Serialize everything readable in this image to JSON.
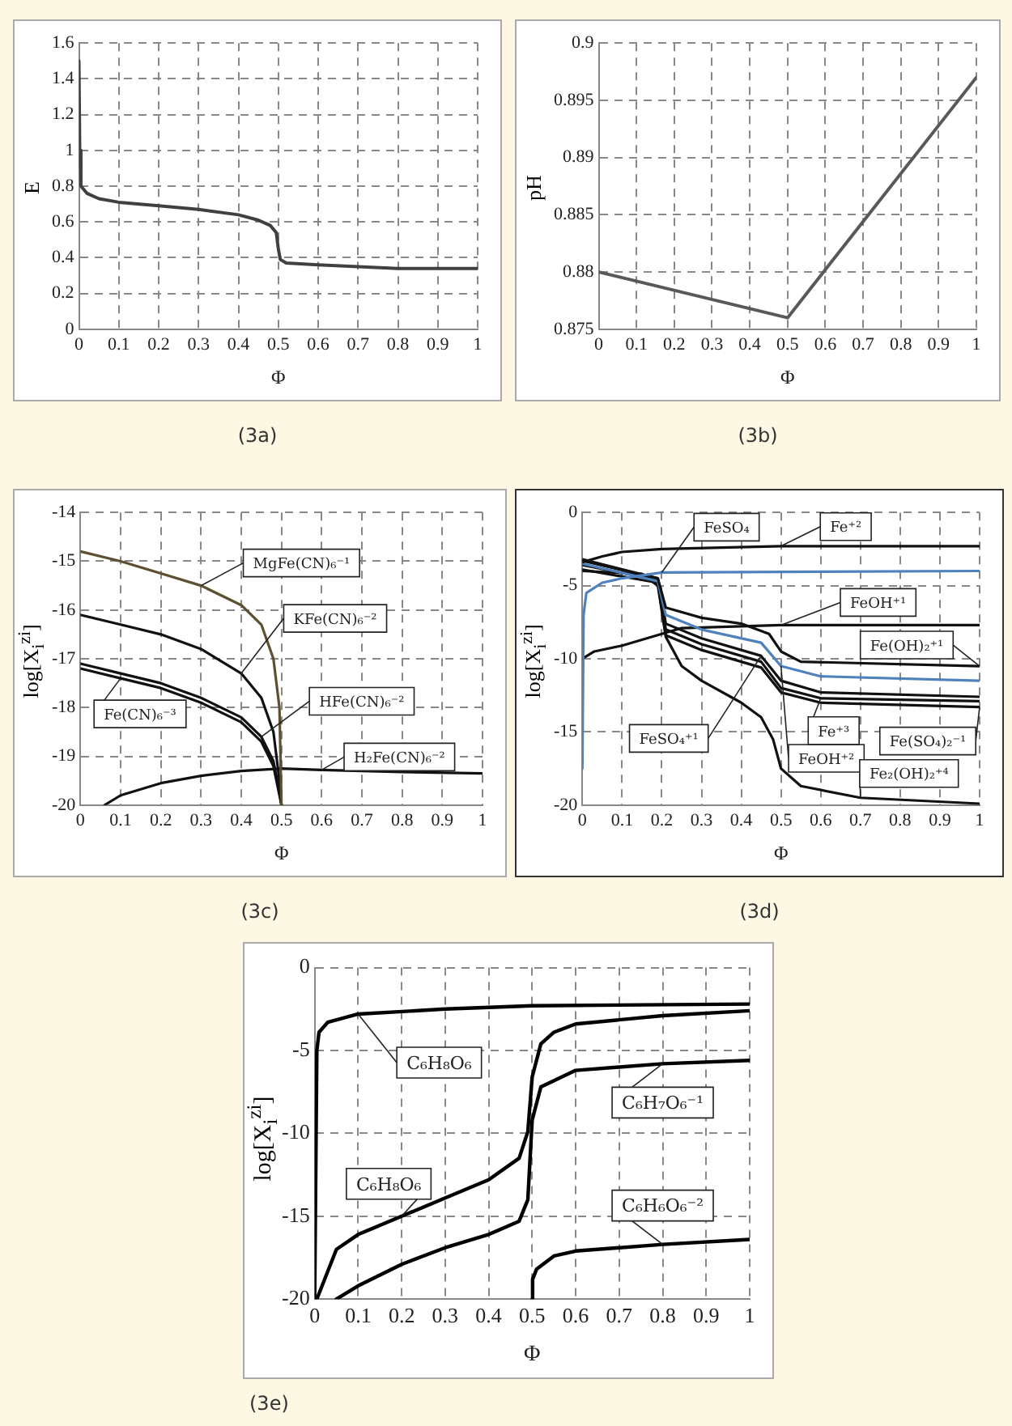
{
  "chart_data": [
    {
      "type": "line",
      "xlabel": "Φ",
      "ylabel": "E",
      "xlim": [
        0,
        1
      ],
      "ylim": [
        0,
        1.6
      ],
      "xticks": [
        0,
        0.1,
        0.2,
        0.3,
        0.4,
        0.5,
        0.6,
        0.7,
        0.8,
        0.9,
        1
      ],
      "yticks": [
        0,
        0.2,
        0.4,
        0.6,
        0.8,
        1,
        1.2,
        1.4,
        1.6
      ],
      "grid": true,
      "annotations": [
        "(3a)"
      ],
      "series": [
        {
          "color": "#404040",
          "x": [
            0,
            0.002,
            0.005,
            0.02,
            0.05,
            0.1,
            0.2,
            0.3,
            0.4,
            0.45,
            0.48,
            0.495,
            0.5,
            0.505,
            0.52,
            0.6,
            0.8,
            1
          ],
          "values": [
            1.5,
            1.0,
            0.8,
            0.76,
            0.73,
            0.71,
            0.69,
            0.67,
            0.64,
            0.61,
            0.58,
            0.54,
            0.45,
            0.39,
            0.37,
            0.36,
            0.34,
            0.34
          ]
        }
      ]
    },
    {
      "type": "line",
      "xlabel": "Φ",
      "ylabel": "pH",
      "xlim": [
        0,
        1
      ],
      "ylim": [
        0.875,
        0.9
      ],
      "xticks": [
        0,
        0.1,
        0.2,
        0.3,
        0.4,
        0.5,
        0.6,
        0.7,
        0.8,
        0.9,
        1
      ],
      "yticks": [
        0.875,
        0.88,
        0.885,
        0.89,
        0.895,
        0.9
      ],
      "grid": true,
      "annotations": [
        "(3b)"
      ],
      "series": [
        {
          "color": "#595959",
          "x": [
            0,
            0.25,
            0.5,
            1
          ],
          "values": [
            0.88,
            0.878,
            0.876,
            0.897
          ]
        }
      ]
    },
    {
      "type": "line",
      "xlabel": "Φ",
      "ylabel": "log[X$_{i}$$^{zi}$]",
      "xlim": [
        0,
        1
      ],
      "ylim": [
        -20,
        -14
      ],
      "xticks": [
        0,
        0.1,
        0.2,
        0.3,
        0.4,
        0.5,
        0.6,
        0.7,
        0.8,
        0.9,
        1
      ],
      "yticks": [
        -20,
        -19,
        -18,
        -17,
        -16,
        -15,
        -14
      ],
      "grid": true,
      "annotations": [
        "(3c)"
      ],
      "series": [
        {
          "name": "MgFe(CN)₆⁻¹",
          "color": "#5c5030",
          "x": [
            0,
            0.1,
            0.2,
            0.3,
            0.4,
            0.45,
            0.48,
            0.495,
            0.5
          ],
          "values": [
            -14.8,
            -15.0,
            -15.25,
            -15.5,
            -15.9,
            -16.3,
            -17.0,
            -18.0,
            -20
          ]
        },
        {
          "name": "KFe(CN)₆⁻²",
          "color": "#111111",
          "x": [
            0,
            0.1,
            0.2,
            0.3,
            0.4,
            0.45,
            0.48,
            0.495,
            0.5
          ],
          "values": [
            -16.1,
            -16.3,
            -16.5,
            -16.8,
            -17.3,
            -17.8,
            -18.5,
            -19.5,
            -20
          ]
        },
        {
          "name": "HFe(CN)₆⁻²",
          "color": "#111111",
          "x": [
            0,
            0.1,
            0.2,
            0.3,
            0.4,
            0.45,
            0.48,
            0.495,
            0.5
          ],
          "values": [
            -17.1,
            -17.3,
            -17.5,
            -17.8,
            -18.2,
            -18.6,
            -19.1,
            -19.7,
            -20
          ]
        },
        {
          "name": "Fe(CN)₆⁻³",
          "color": "#111111",
          "x": [
            0,
            0.1,
            0.2,
            0.3,
            0.4,
            0.45,
            0.48,
            0.495,
            0.5
          ],
          "values": [
            -17.2,
            -17.4,
            -17.6,
            -17.9,
            -18.3,
            -18.7,
            -19.2,
            -19.8,
            -20
          ]
        },
        {
          "name": "H₂Fe(CN)₆⁻²",
          "color": "#111111",
          "x": [
            0.06,
            0.1,
            0.2,
            0.3,
            0.4,
            0.5,
            0.6,
            0.8,
            1
          ],
          "values": [
            -20,
            -19.8,
            -19.55,
            -19.4,
            -19.3,
            -19.25,
            -19.28,
            -19.32,
            -19.35
          ]
        }
      ]
    },
    {
      "type": "line",
      "xlabel": "Φ",
      "ylabel": "log[X$_{i}$$^{zi}$]",
      "xlim": [
        0,
        1
      ],
      "ylim": [
        -20,
        0
      ],
      "xticks": [
        0,
        0.1,
        0.2,
        0.3,
        0.4,
        0.5,
        0.6,
        0.7,
        0.8,
        0.9,
        1
      ],
      "yticks": [
        -20,
        -15,
        -10,
        -5,
        0
      ],
      "grid": true,
      "annotations": [
        "(3d)"
      ],
      "series": [
        {
          "name": "Fe⁺²",
          "color": "#111111",
          "x": [
            0,
            0.05,
            0.1,
            0.2,
            0.5,
            1
          ],
          "values": [
            -3.4,
            -3.0,
            -2.7,
            -2.5,
            -2.3,
            -2.3
          ]
        },
        {
          "name": "FeSO₄",
          "color": "#4f81bd",
          "x": [
            0,
            0.003,
            0.01,
            0.05,
            0.1,
            0.2,
            1
          ],
          "values": [
            -17.5,
            -7,
            -5.5,
            -4.8,
            -4.5,
            -4.1,
            -4.0
          ]
        },
        {
          "name": "Fe(OH)₂⁺¹",
          "color": "#111111",
          "x": [
            0,
            0.19,
            0.21,
            0.3,
            0.4,
            0.47,
            0.5,
            0.55,
            1
          ],
          "values": [
            -3.2,
            -4.5,
            -6.5,
            -7.2,
            -7.6,
            -8.3,
            -9.5,
            -10.2,
            -10.5
          ]
        },
        {
          "name": "FeOH⁺²",
          "color": "#4f81bd",
          "x": [
            0,
            0.19,
            0.21,
            0.3,
            0.45,
            0.5,
            0.6,
            1
          ],
          "values": [
            -3.5,
            -4.7,
            -7,
            -8,
            -8.9,
            -10.5,
            -11.2,
            -11.5
          ]
        },
        {
          "name": "FeSO₄⁺¹",
          "color": "#111111",
          "x": [
            0,
            0.19,
            0.21,
            0.3,
            0.45,
            0.5,
            0.6,
            1
          ],
          "values": [
            -3.3,
            -4.5,
            -7.6,
            -8.6,
            -9.8,
            -11.5,
            -12.3,
            -12.6
          ]
        },
        {
          "name": "Fe⁺³",
          "color": "#111111",
          "x": [
            0,
            0.19,
            0.21,
            0.3,
            0.45,
            0.5,
            0.6,
            1
          ],
          "values": [
            -3.6,
            -4.6,
            -8,
            -9.0,
            -10.2,
            -12,
            -12.7,
            -12.9
          ]
        },
        {
          "name": "Fe(SO₄)₂⁻¹",
          "color": "#111111",
          "x": [
            0,
            0.19,
            0.21,
            0.3,
            0.45,
            0.5,
            0.6,
            1
          ],
          "values": [
            -3.9,
            -4.8,
            -8.4,
            -9.4,
            -10.6,
            -12.3,
            -13,
            -13.3
          ]
        },
        {
          "name": "Fe₂(OH)₂⁺⁴",
          "color": "#111111",
          "x": [
            0,
            0.15,
            0.19,
            0.21,
            0.25,
            0.3,
            0.4,
            0.45,
            0.48,
            0.5,
            0.55,
            0.7,
            1
          ],
          "values": [
            -4.0,
            -4.2,
            -5.0,
            -8.5,
            -10.5,
            -11.5,
            -13,
            -14,
            -15.5,
            -17.5,
            -18.7,
            -19.5,
            -19.9
          ]
        },
        {
          "name": "FeOH⁺¹",
          "color": "#111111",
          "x": [
            0,
            0.03,
            0.1,
            0.2,
            0.25,
            0.5,
            1
          ],
          "values": [
            -10,
            -9.5,
            -9.1,
            -8.3,
            -7.9,
            -7.7,
            -7.7
          ]
        }
      ]
    },
    {
      "type": "line",
      "xlabel": "Φ",
      "ylabel": "log[X$_{i}$$^{zi}$]",
      "xlim": [
        0,
        1
      ],
      "ylim": [
        -20,
        0
      ],
      "xticks": [
        0,
        0.1,
        0.2,
        0.3,
        0.4,
        0.5,
        0.6,
        0.7,
        0.8,
        0.9,
        1
      ],
      "yticks": [
        -20,
        -15,
        -10,
        -5,
        0
      ],
      "grid": true,
      "annotations": [
        "(3e)"
      ],
      "series": [
        {
          "name": "C₆H₈O₆",
          "color": "#000000",
          "x": [
            0,
            0.005,
            0.01,
            0.03,
            0.1,
            0.3,
            0.5,
            1
          ],
          "values": [
            -20,
            -5,
            -3.9,
            -3.3,
            -2.8,
            -2.5,
            -2.3,
            -2.2
          ]
        },
        {
          "name": "C₆H₇O₆⁻¹",
          "color": "#000000",
          "x": [
            0.05,
            0.1,
            0.2,
            0.3,
            0.4,
            0.47,
            0.49,
            0.5,
            0.52,
            0.6,
            0.8,
            1
          ],
          "values": [
            -20,
            -19.2,
            -17.9,
            -16.9,
            -16.1,
            -15.3,
            -14,
            -9.2,
            -7.2,
            -6.2,
            -5.8,
            -5.6
          ]
        },
        {
          "name": "C₆H₈O₆",
          "color": "#000000",
          "x": [
            0.005,
            0.05,
            0.1,
            0.2,
            0.3,
            0.4,
            0.47,
            0.49,
            0.5,
            0.52,
            0.55,
            0.6,
            0.8,
            1
          ],
          "values": [
            -20,
            -17.0,
            -16.1,
            -15,
            -13.9,
            -12.8,
            -11.5,
            -9.9,
            -6.6,
            -4.6,
            -3.9,
            -3.4,
            -2.9,
            -2.6
          ]
        },
        {
          "name": "C₆H₆O₆⁻²",
          "color": "#000000",
          "x": [
            0.5,
            0.501,
            0.51,
            0.55,
            0.6,
            0.8,
            1
          ],
          "values": [
            -20,
            -18.8,
            -18.2,
            -17.4,
            -17.1,
            -16.7,
            -16.4
          ]
        }
      ]
    }
  ]
}
